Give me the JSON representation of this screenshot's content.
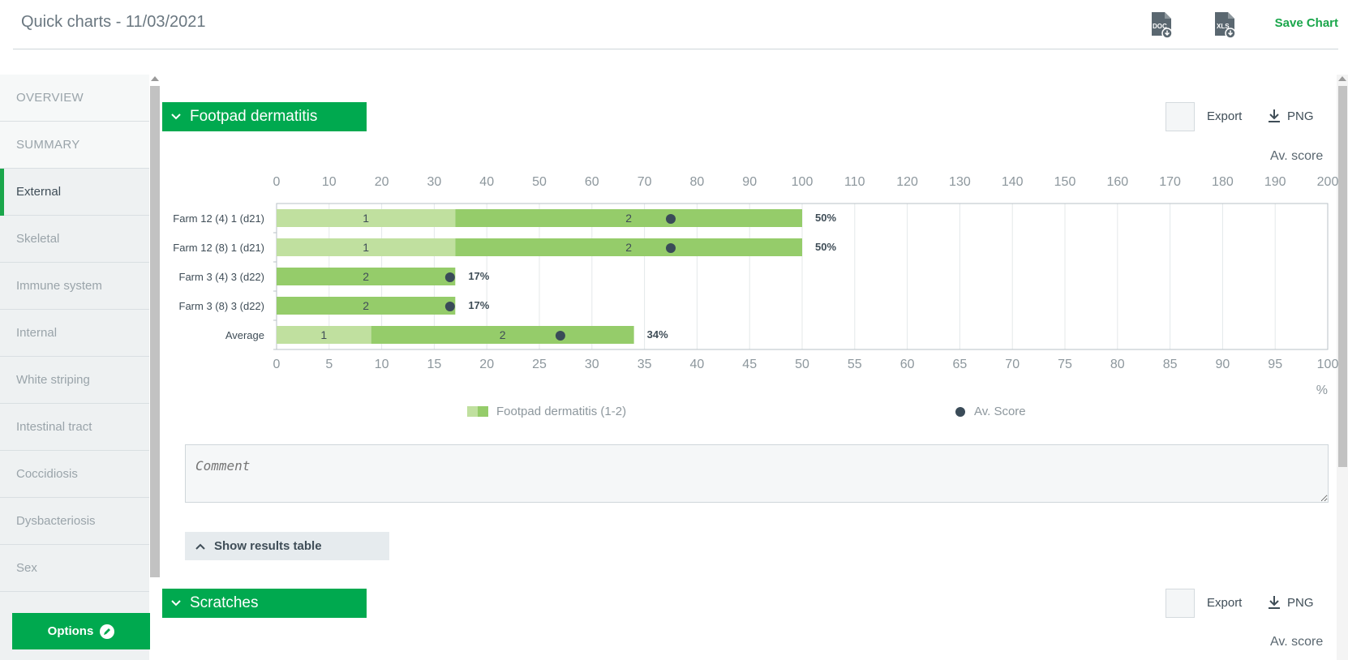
{
  "header": {
    "title": "Quick charts - 11/03/2021",
    "doc_icon": "doc-download-icon",
    "xls_icon": "xls-download-icon",
    "save_label": "Save Chart"
  },
  "sidebar": {
    "items": [
      {
        "label": "OVERVIEW"
      },
      {
        "label": "SUMMARY"
      },
      {
        "label": "External"
      },
      {
        "label": "Skeletal"
      },
      {
        "label": "Immune system"
      },
      {
        "label": "Internal"
      },
      {
        "label": "White striping"
      },
      {
        "label": "Intestinal tract"
      },
      {
        "label": "Coccidiosis"
      },
      {
        "label": "Dysbacteriosis"
      },
      {
        "label": "Sex"
      }
    ],
    "active": "External",
    "options_label": "Options"
  },
  "sections": [
    {
      "title": "Footpad dermatitis",
      "export_label": "Export",
      "png_label": "PNG",
      "av_score_label": "Av. score"
    },
    {
      "title": "Scratches",
      "export_label": "Export",
      "png_label": "PNG",
      "av_score_label": "Av. score"
    }
  ],
  "chart_data": {
    "type": "bar",
    "orientation": "horizontal",
    "stacked": true,
    "categories": [
      "Farm 12 (4) 1 (d21)",
      "Farm 12 (8) 1 (d21)",
      "Farm 3 (4) 3 (d22)",
      "Farm 3 (8) 3 (d22)",
      "Average"
    ],
    "series": [
      {
        "name": "1",
        "values": [
          17,
          17,
          0,
          0,
          9
        ],
        "color": "#c0e09f"
      },
      {
        "name": "2",
        "values": [
          33,
          33,
          17,
          17,
          25
        ],
        "color": "#95cc6a"
      }
    ],
    "totals_labels": [
      "50%",
      "50%",
      "17%",
      "17%",
      "34%"
    ],
    "av_score": [
      75,
      75,
      33,
      33,
      54
    ],
    "av_score_color": "#3a4b58",
    "x_bottom": {
      "label": "%",
      "range": [
        0,
        100
      ],
      "ticks": [
        0,
        5,
        10,
        15,
        20,
        25,
        30,
        35,
        40,
        45,
        50,
        55,
        60,
        65,
        70,
        75,
        80,
        85,
        90,
        95,
        100
      ]
    },
    "x_top": {
      "label": "Av. score",
      "range": [
        0,
        200
      ],
      "ticks": [
        0,
        10,
        20,
        30,
        40,
        50,
        60,
        70,
        80,
        90,
        100,
        110,
        120,
        130,
        140,
        150,
        160,
        170,
        180,
        190,
        200
      ]
    },
    "legend": [
      {
        "label": "Footpad dermatitis (1-2)",
        "kind": "bar"
      },
      {
        "label": "Av. Score",
        "kind": "dot"
      }
    ],
    "grid": true
  },
  "comment": {
    "placeholder": "Comment"
  },
  "results_toggle": {
    "label": "Show results table"
  },
  "colors": {
    "accent": "#00a94f",
    "bar_light": "#c0e09f",
    "bar_dark": "#95cc6a",
    "dot": "#3a4b58"
  }
}
